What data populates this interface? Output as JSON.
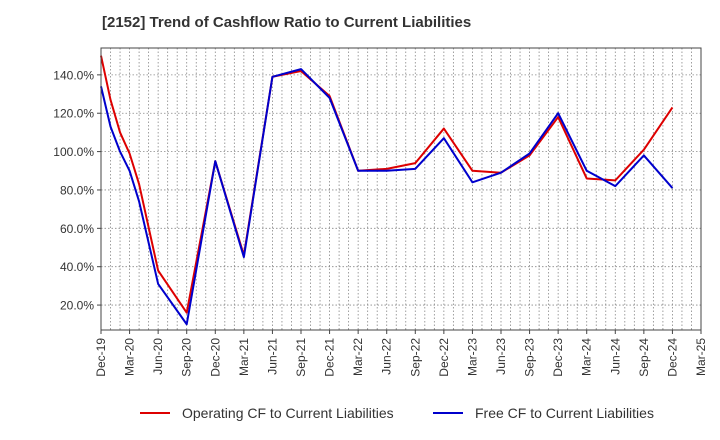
{
  "chart_data": {
    "type": "line",
    "title": "[2152]  Trend of Cashflow Ratio to Current Liabilities",
    "xlabel": "",
    "ylabel": "",
    "x_ticks": [
      "Dec-19",
      "Mar-20",
      "Jun-20",
      "Sep-20",
      "Dec-20",
      "Mar-21",
      "Jun-21",
      "Sep-21",
      "Dec-21",
      "Mar-22",
      "Jun-22",
      "Sep-22",
      "Dec-22",
      "Mar-23",
      "Jun-23",
      "Sep-23",
      "Dec-23",
      "Mar-24",
      "Jun-24",
      "Sep-24",
      "Dec-24",
      "Mar-25"
    ],
    "y_ticks": [
      "20.0%",
      "40.0%",
      "60.0%",
      "80.0%",
      "100.0%",
      "120.0%",
      "140.0%"
    ],
    "y_tick_values": [
      20,
      40,
      60,
      80,
      100,
      120,
      140
    ],
    "ylim": [
      7,
      154
    ],
    "grid": true,
    "legend_position": "bottom",
    "series": [
      {
        "name": "Operating CF to Current Liabilities",
        "color": "#dd0000",
        "x": [
          "Dec-19",
          "Jan-20",
          "Feb-20",
          "Mar-20",
          "Apr-20",
          "Jun-20",
          "Sep-20",
          "Dec-20",
          "Mar-21",
          "Jun-21",
          "Sep-21",
          "Dec-21",
          "Mar-22",
          "Jun-22",
          "Sep-22",
          "Dec-22",
          "Mar-23",
          "Jun-23",
          "Sep-23",
          "Dec-23",
          "Mar-24",
          "Jun-24",
          "Sep-24",
          "Dec-24"
        ],
        "values": [
          150,
          127,
          110,
          99,
          83,
          38,
          16,
          95,
          46,
          139,
          142,
          129,
          90,
          91,
          94,
          112,
          90,
          89,
          98,
          118,
          86,
          85,
          101,
          123
        ]
      },
      {
        "name": "Free CF to Current Liabilities",
        "color": "#0000cc",
        "x": [
          "Dec-19",
          "Jan-20",
          "Feb-20",
          "Mar-20",
          "Apr-20",
          "Jun-20",
          "Sep-20",
          "Dec-20",
          "Mar-21",
          "Jun-21",
          "Sep-21",
          "Dec-21",
          "Mar-22",
          "Jun-22",
          "Sep-22",
          "Dec-22",
          "Mar-23",
          "Jun-23",
          "Sep-23",
          "Dec-23",
          "Mar-24",
          "Jun-24",
          "Sep-24",
          "Dec-24"
        ],
        "values": [
          134,
          113,
          100,
          90,
          74,
          31,
          10,
          95,
          45,
          139,
          143,
          128,
          90,
          90,
          91,
          107,
          84,
          89,
          99,
          120,
          90,
          82,
          98,
          81
        ]
      }
    ]
  }
}
